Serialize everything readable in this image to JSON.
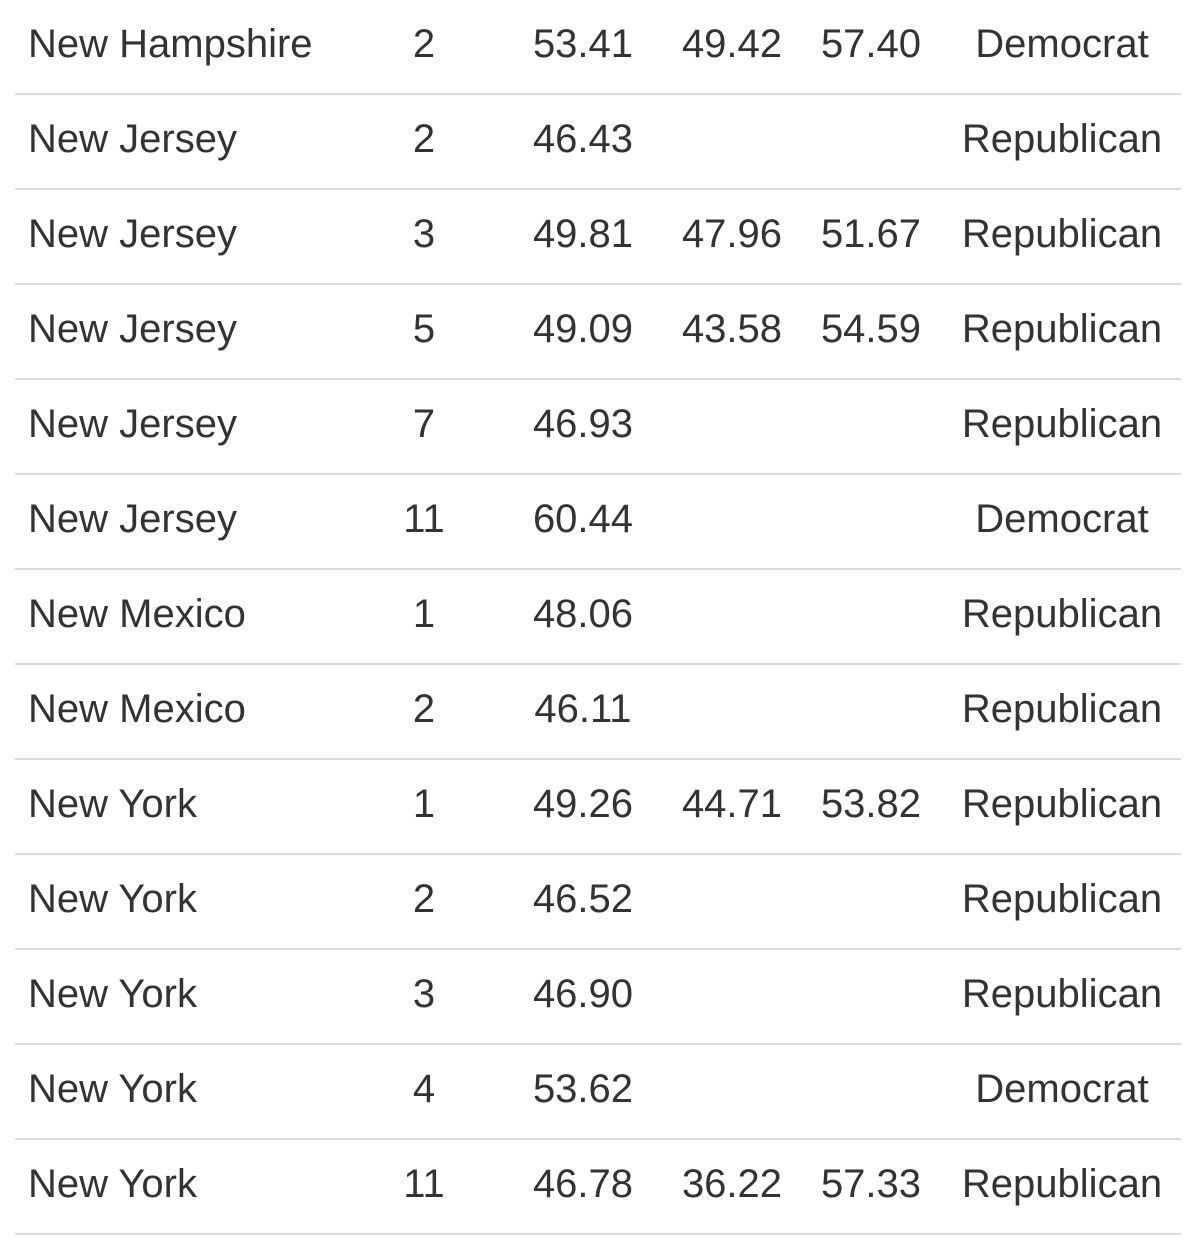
{
  "table": {
    "rows": [
      {
        "state": "New Hampshire",
        "district": "2",
        "estimate": "53.41",
        "lower": "49.42",
        "upper": "57.40",
        "party": "Democrat"
      },
      {
        "state": "New Jersey",
        "district": "2",
        "estimate": "46.43",
        "lower": "",
        "upper": "",
        "party": "Republican"
      },
      {
        "state": "New Jersey",
        "district": "3",
        "estimate": "49.81",
        "lower": "47.96",
        "upper": "51.67",
        "party": "Republican"
      },
      {
        "state": "New Jersey",
        "district": "5",
        "estimate": "49.09",
        "lower": "43.58",
        "upper": "54.59",
        "party": "Republican"
      },
      {
        "state": "New Jersey",
        "district": "7",
        "estimate": "46.93",
        "lower": "",
        "upper": "",
        "party": "Republican"
      },
      {
        "state": "New Jersey",
        "district": "11",
        "estimate": "60.44",
        "lower": "",
        "upper": "",
        "party": "Democrat"
      },
      {
        "state": "New Mexico",
        "district": "1",
        "estimate": "48.06",
        "lower": "",
        "upper": "",
        "party": "Republican"
      },
      {
        "state": "New Mexico",
        "district": "2",
        "estimate": "46.11",
        "lower": "",
        "upper": "",
        "party": "Republican"
      },
      {
        "state": "New York",
        "district": "1",
        "estimate": "49.26",
        "lower": "44.71",
        "upper": "53.82",
        "party": "Republican"
      },
      {
        "state": "New York",
        "district": "2",
        "estimate": "46.52",
        "lower": "",
        "upper": "",
        "party": "Republican"
      },
      {
        "state": "New York",
        "district": "3",
        "estimate": "46.90",
        "lower": "",
        "upper": "",
        "party": "Republican"
      },
      {
        "state": "New York",
        "district": "4",
        "estimate": "53.62",
        "lower": "",
        "upper": "",
        "party": "Democrat"
      },
      {
        "state": "New York",
        "district": "11",
        "estimate": "46.78",
        "lower": "36.22",
        "upper": "57.33",
        "party": "Republican"
      }
    ]
  }
}
